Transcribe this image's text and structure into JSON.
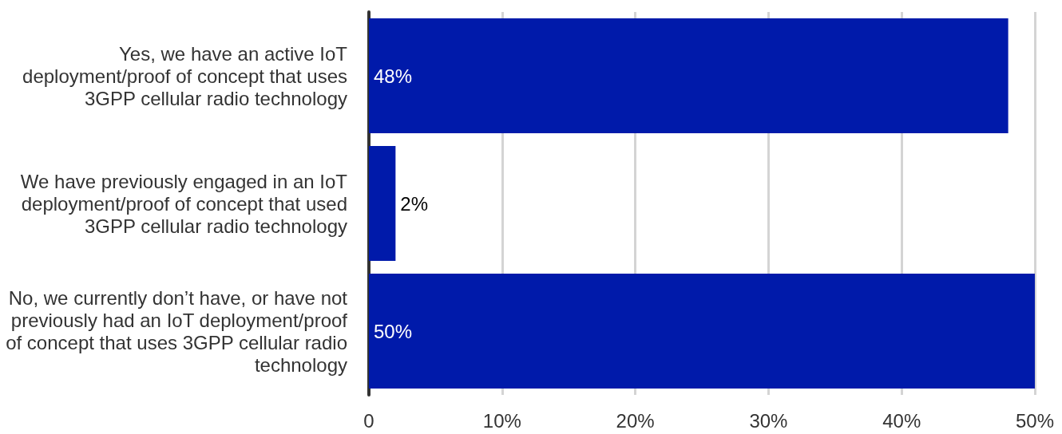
{
  "chart_data": {
    "type": "bar",
    "orientation": "horizontal",
    "categories": [
      "Yes, we have an active IoT deployment/proof of concept that uses 3GPP cellular radio technology",
      "We have previously engaged in an IoT deployment/proof of concept that used 3GPP cellular radio technology",
      "No, we currently don’t have, or have not previously had an IoT deployment/proof of concept that uses 3GPP cellular radio technology"
    ],
    "values": [
      48,
      2,
      50
    ],
    "value_labels": [
      "48%",
      "2%",
      "50%"
    ],
    "color": "#001aaa",
    "xlim": [
      0,
      50
    ],
    "xticks": [
      0,
      {
        "value": 10,
        "label": "10%"
      },
      {
        "value": 20,
        "label": "20%"
      },
      {
        "value": 30,
        "label": "30%"
      },
      {
        "value": 40,
        "label": "40%"
      },
      {
        "value": 50,
        "label": "50%"
      }
    ],
    "grid": "x"
  }
}
